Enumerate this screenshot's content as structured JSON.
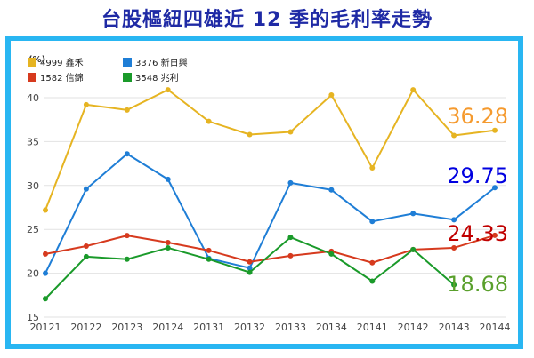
{
  "colors": {
    "title": "#1f2aa5",
    "frame": "#29b6f2",
    "series": [
      "#e6b422",
      "#1f7ed6",
      "#d63a1e",
      "#1a9a2a"
    ],
    "callouts": [
      "#f59a2e",
      "#0000e0",
      "#c00000",
      "#5aa02c"
    ]
  },
  "chart_data": {
    "type": "line",
    "title": "台股樞紐四雄近 12 季的毛利率走勢",
    "ylabel": "(%)",
    "ylim": [
      15,
      41
    ],
    "yticks": [
      "40",
      "35",
      "30",
      "25",
      "20",
      "15"
    ],
    "ytick_values": [
      40,
      35,
      30,
      25,
      20,
      15
    ],
    "grid": true,
    "legend_position": "top-left",
    "categories": [
      "20121",
      "20122",
      "20123",
      "20124",
      "20131",
      "20132",
      "20133",
      "20134",
      "20141",
      "20142",
      "20143",
      "20144"
    ],
    "series": [
      {
        "name": "4999 鑫禾",
        "values": [
          27.2,
          39.2,
          38.6,
          40.9,
          37.3,
          35.8,
          36.1,
          40.3,
          32.0,
          40.9,
          35.7,
          36.28
        ],
        "callout": "36.28"
      },
      {
        "name": "3376 新日興",
        "values": [
          20.0,
          29.6,
          33.6,
          30.7,
          21.7,
          20.6,
          30.3,
          29.5,
          25.9,
          26.8,
          26.1,
          29.75
        ],
        "callout": "29.75"
      },
      {
        "name": "1582 信錦",
        "values": [
          22.2,
          23.1,
          24.3,
          23.5,
          22.6,
          21.3,
          22.0,
          22.5,
          21.2,
          22.7,
          22.9,
          24.33
        ],
        "callout": "24.33"
      },
      {
        "name": "3548 兆利",
        "values": [
          17.1,
          21.9,
          21.6,
          22.9,
          21.6,
          20.1,
          24.1,
          22.2,
          19.1,
          22.7,
          18.68,
          null
        ],
        "callout": "18.68"
      }
    ]
  }
}
